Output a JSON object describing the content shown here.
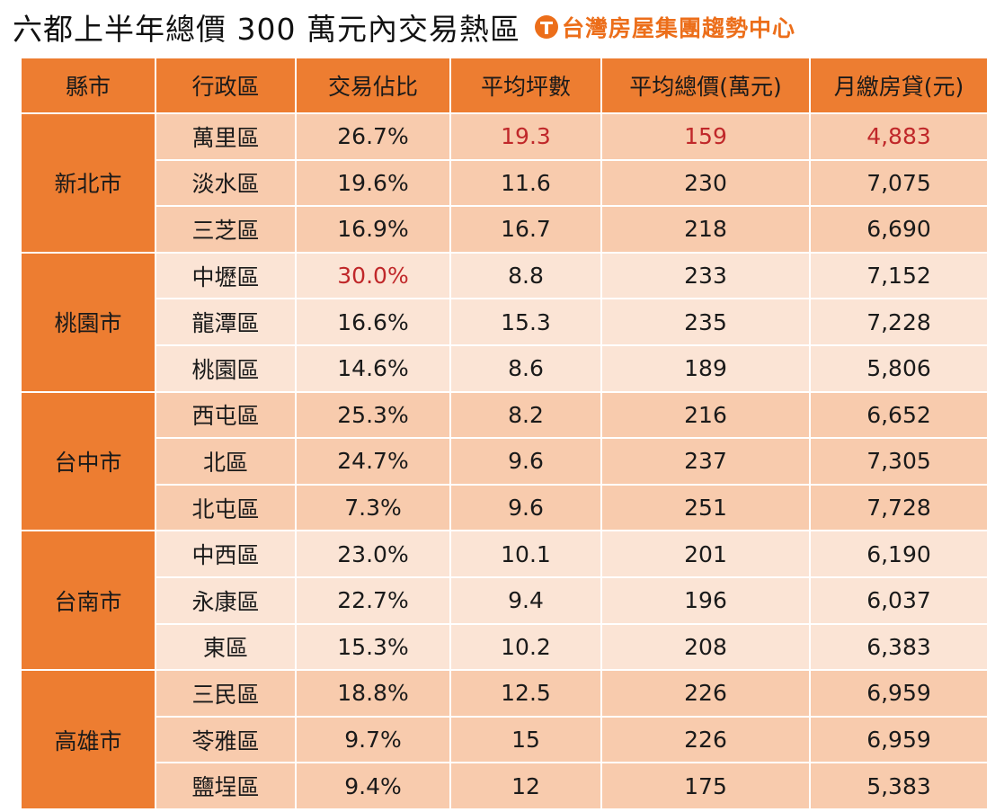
{
  "title": "六都上半年總價 300 萬元內交易熱區",
  "logo_text": "台灣房屋集團趨勢中心",
  "headers": [
    "縣市",
    "行政區",
    "交易佔比",
    "平均坪數",
    "平均總價(萬元)",
    "月繳房貸(元)"
  ],
  "colors": {
    "header": "#ed7d31",
    "row_dark": "#f8cbad",
    "row_light": "#fbe4d5",
    "highlight": "#c0282a"
  },
  "groups": [
    {
      "city": "新北市",
      "rows": [
        {
          "district": "萬里區",
          "share": "26.7%",
          "area": "19.3",
          "price": "159",
          "mortgage": "4,883"
        },
        {
          "district": "淡水區",
          "share": "19.6%",
          "area": "11.6",
          "price": "230",
          "mortgage": "7,075"
        },
        {
          "district": "三芝區",
          "share": "16.9%",
          "area": "16.7",
          "price": "218",
          "mortgage": "6,690"
        }
      ]
    },
    {
      "city": "桃園市",
      "rows": [
        {
          "district": "中壢區",
          "share": "30.0%",
          "area": "8.8",
          "price": "233",
          "mortgage": "7,152"
        },
        {
          "district": "龍潭區",
          "share": "16.6%",
          "area": "15.3",
          "price": "235",
          "mortgage": "7,228"
        },
        {
          "district": "桃園區",
          "share": "14.6%",
          "area": "8.6",
          "price": "189",
          "mortgage": "5,806"
        }
      ]
    },
    {
      "city": "台中市",
      "rows": [
        {
          "district": "西屯區",
          "share": "25.3%",
          "area": "8.2",
          "price": "216",
          "mortgage": "6,652"
        },
        {
          "district": "北區",
          "share": "24.7%",
          "area": "9.6",
          "price": "237",
          "mortgage": "7,305"
        },
        {
          "district": "北屯區",
          "share": "7.3%",
          "area": "9.6",
          "price": "251",
          "mortgage": "7,728"
        }
      ]
    },
    {
      "city": "台南市",
      "rows": [
        {
          "district": "中西區",
          "share": "23.0%",
          "area": "10.1",
          "price": "201",
          "mortgage": "6,190"
        },
        {
          "district": "永康區",
          "share": "22.7%",
          "area": "9.4",
          "price": "196",
          "mortgage": "6,037"
        },
        {
          "district": "東區",
          "share": "15.3%",
          "area": "10.2",
          "price": "208",
          "mortgage": "6,383"
        }
      ]
    },
    {
      "city": "高雄市",
      "rows": [
        {
          "district": "三民區",
          "share": "18.8%",
          "area": "12.5",
          "price": "226",
          "mortgage": "6,959"
        },
        {
          "district": "苓雅區",
          "share": "9.7%",
          "area": "15",
          "price": "226",
          "mortgage": "6,959"
        },
        {
          "district": "鹽埕區",
          "share": "9.4%",
          "area": "12",
          "price": "175",
          "mortgage": "5,383"
        }
      ]
    }
  ],
  "highlights": [
    [
      "0.0.area",
      "0.0.price",
      "0.0.mortgage",
      "1.0.share"
    ]
  ]
}
